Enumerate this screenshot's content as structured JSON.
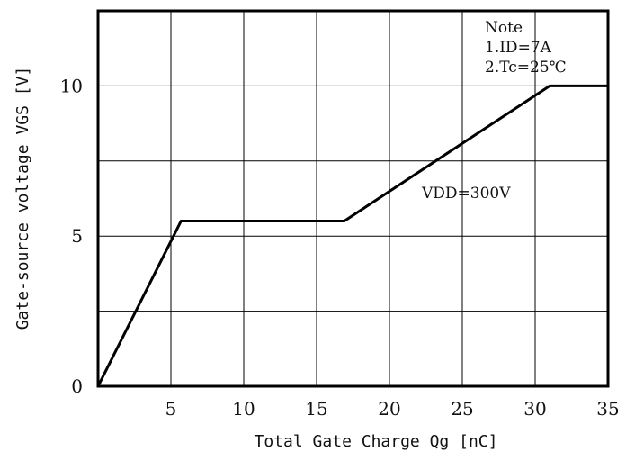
{
  "chart_data": {
    "type": "line",
    "xlabel": "Total Gate Charge Qg [nC]",
    "ylabel": "Gate-source voltage VGS [V]",
    "xlim": [
      0,
      35
    ],
    "ylim": [
      0,
      12.5
    ],
    "x_ticks": [
      "5",
      "10",
      "15",
      "20",
      "25",
      "30",
      "35"
    ],
    "y_ticks": [
      "0",
      "5",
      "10"
    ],
    "grid": true,
    "series": [
      {
        "name": "VDD=300V",
        "x": [
          0,
          5.7,
          16.9,
          31.0,
          35.0
        ],
        "y": [
          0,
          5.5,
          5.5,
          10.0,
          10.0
        ]
      }
    ],
    "notes": [
      "Note",
      "1.ID=7A",
      "2.Tc=25℃"
    ],
    "series_label": "VDD=300V"
  }
}
